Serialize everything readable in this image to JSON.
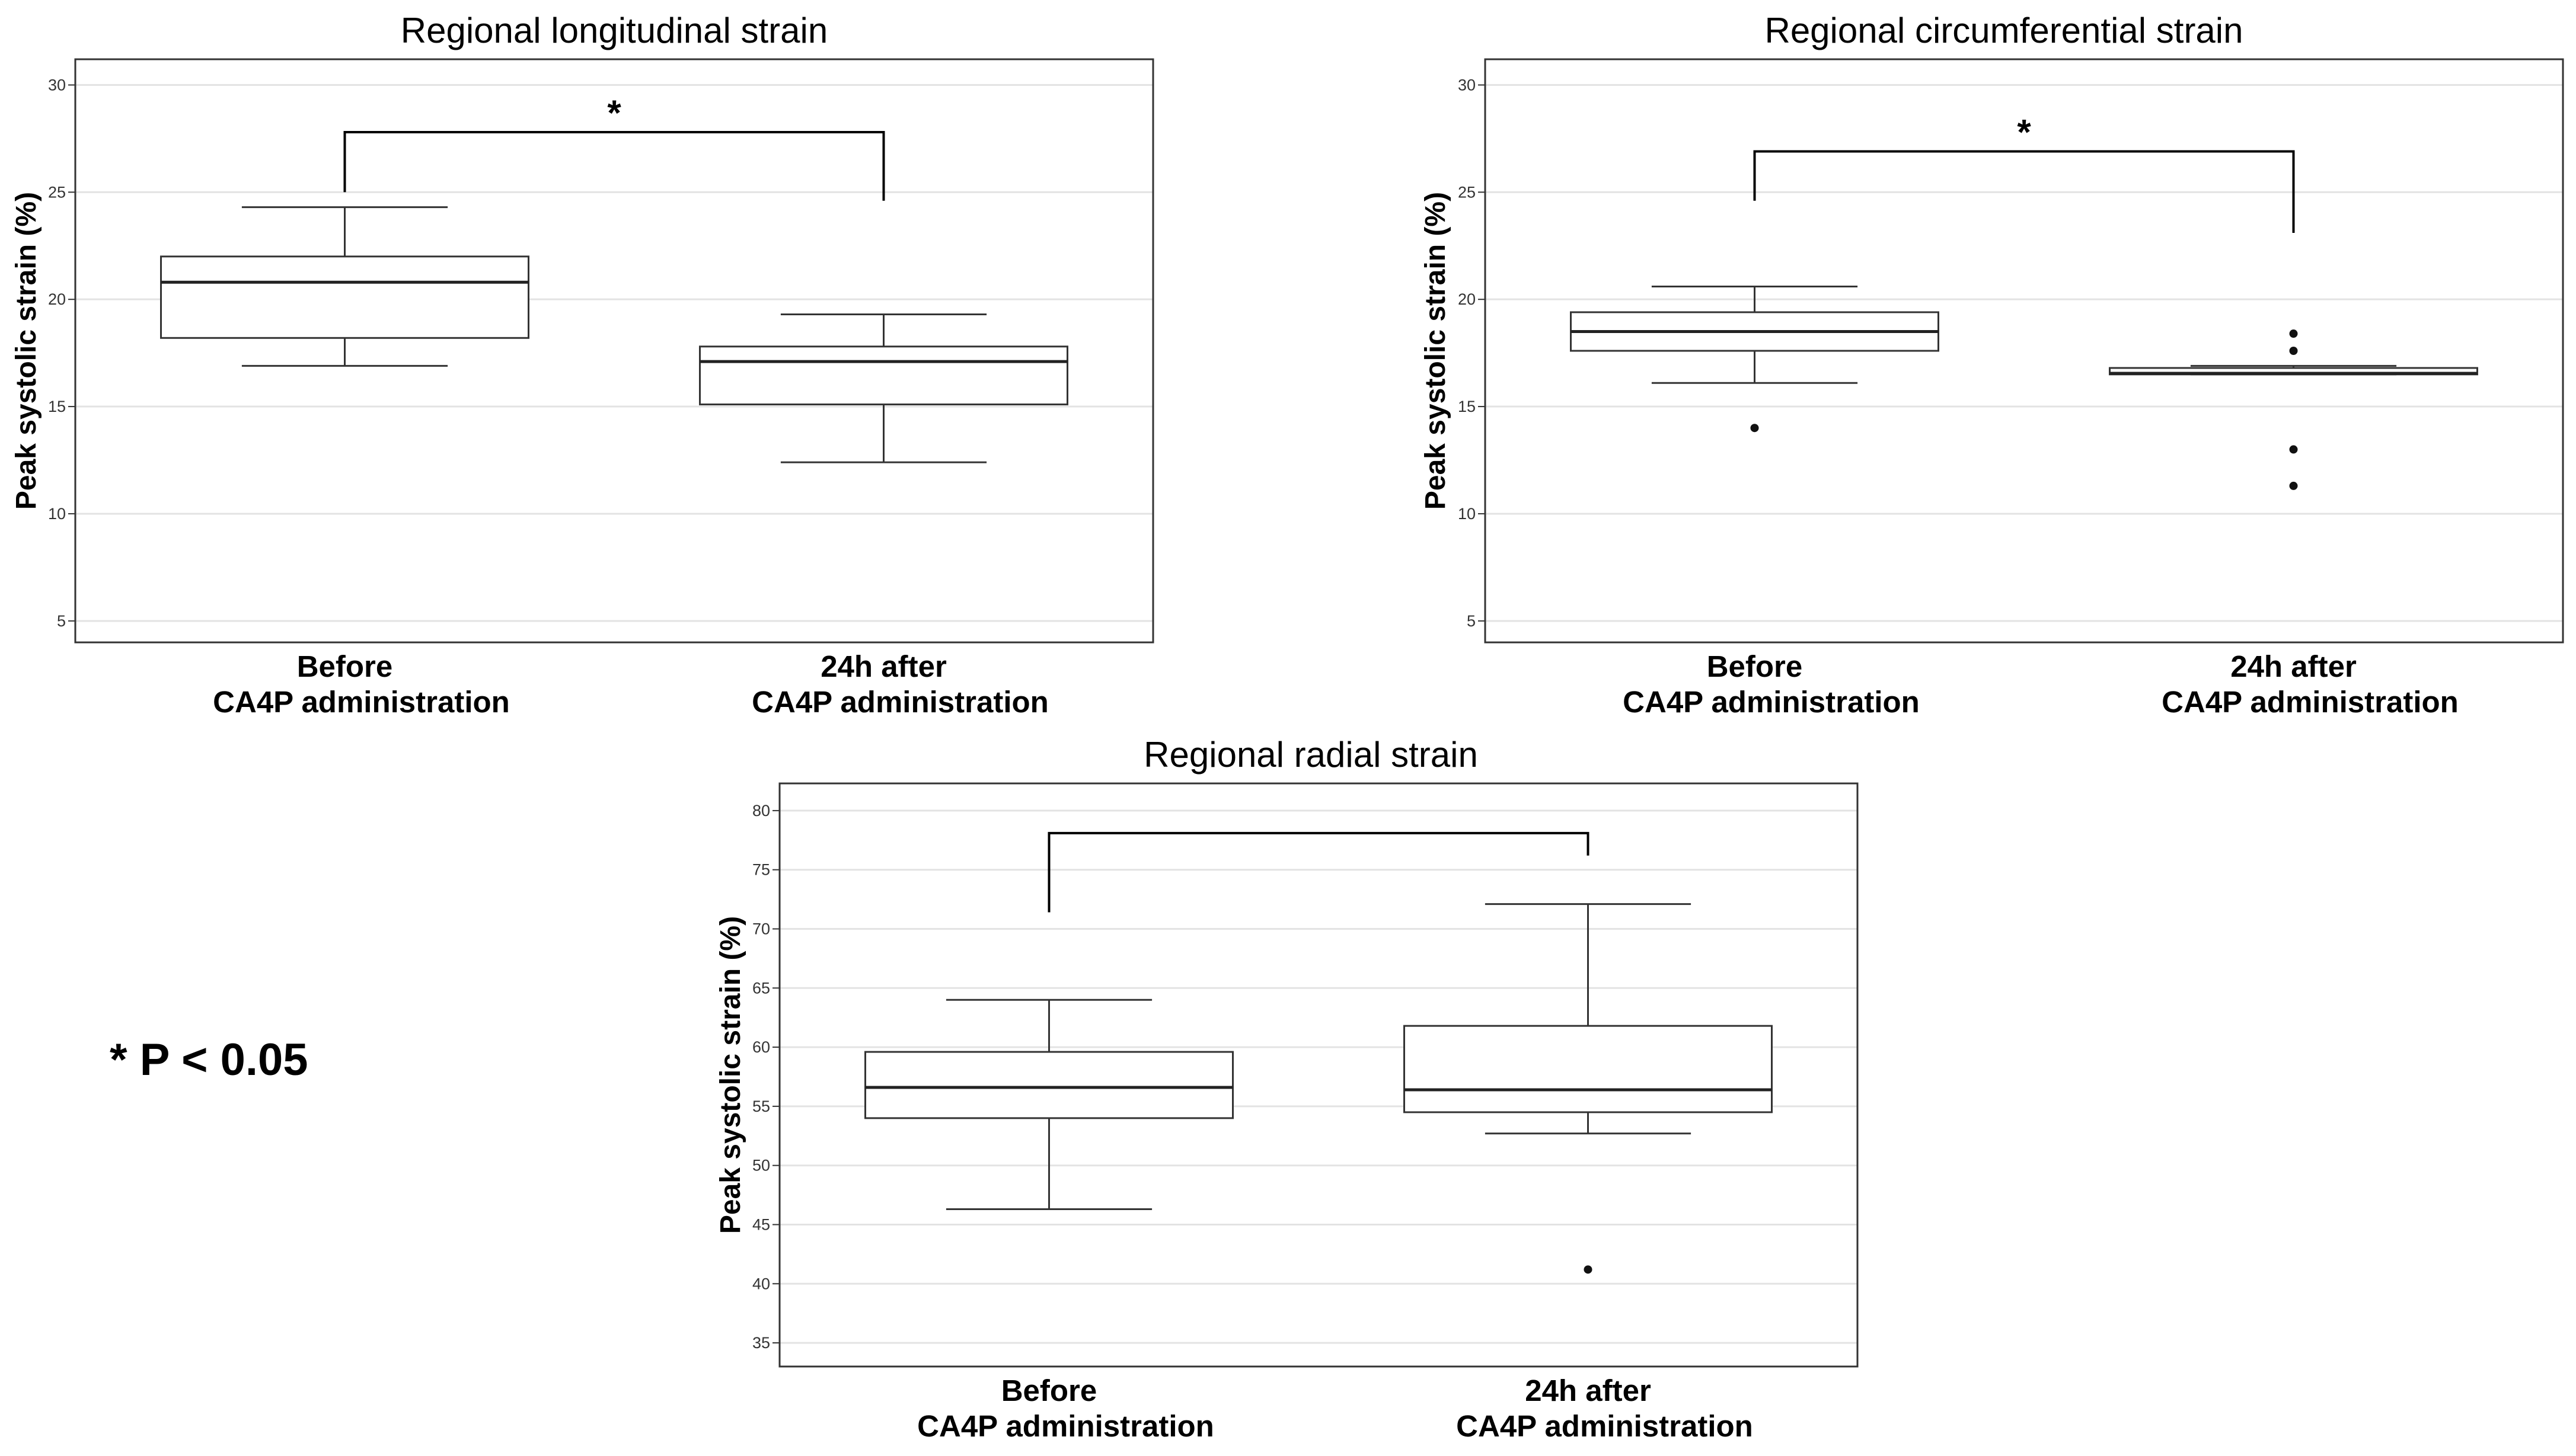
{
  "footnote": "* P < 0.05",
  "chart_data": [
    {
      "type": "box",
      "title": "Regional longitudinal strain",
      "ylabel": "Peak systolic strain (%)",
      "ylim": [
        4,
        31.2
      ],
      "yticks": [
        5,
        10,
        15,
        20,
        25,
        30
      ],
      "grid": true,
      "categories": [
        [
          "Before",
          "CA4P administration"
        ],
        [
          "24h after",
          "CA4P administration"
        ]
      ],
      "boxes": [
        {
          "whisker_low": 16.9,
          "q1": 18.2,
          "median": 20.8,
          "q3": 22.0,
          "whisker_high": 24.3,
          "outliers": []
        },
        {
          "whisker_low": 12.4,
          "q1": 15.1,
          "median": 17.1,
          "q3": 17.8,
          "whisker_high": 19.3,
          "outliers": []
        }
      ],
      "significance": {
        "symbol": "*",
        "bracket_top": 27.8,
        "left_end": 25.0,
        "right_end": 24.6
      }
    },
    {
      "type": "box",
      "title": "Regional circumferential strain",
      "ylabel": "Peak systolic strain (%)",
      "ylim": [
        4,
        31.2
      ],
      "yticks": [
        5,
        10,
        15,
        20,
        25,
        30
      ],
      "grid": true,
      "categories": [
        [
          "Before",
          "CA4P administration"
        ],
        [
          "24h after",
          "CA4P administration"
        ]
      ],
      "boxes": [
        {
          "whisker_low": 16.1,
          "q1": 17.6,
          "median": 18.5,
          "q3": 19.4,
          "whisker_high": 20.6,
          "outliers": [
            14.0
          ]
        },
        {
          "whisker_low": 16.5,
          "q1": 16.5,
          "median": 16.55,
          "q3": 16.8,
          "whisker_high": 16.9,
          "outliers": [
            18.4,
            17.6,
            13.0,
            11.3
          ]
        }
      ],
      "significance": {
        "symbol": "*",
        "bracket_top": 26.9,
        "left_end": 24.6,
        "right_end": 23.1
      }
    },
    {
      "type": "box",
      "title": "Regional radial strain",
      "ylabel": "Peak systolic strain (%)",
      "ylim": [
        33,
        82.3
      ],
      "yticks": [
        35,
        40,
        45,
        50,
        55,
        60,
        65,
        70,
        75,
        80
      ],
      "grid": true,
      "categories": [
        [
          "Before",
          "CA4P administration"
        ],
        [
          "24h after",
          "CA4P administration"
        ]
      ],
      "boxes": [
        {
          "whisker_low": 46.3,
          "q1": 54.0,
          "median": 56.6,
          "q3": 59.6,
          "whisker_high": 64.0,
          "outliers": []
        },
        {
          "whisker_low": 52.7,
          "q1": 54.5,
          "median": 56.4,
          "q3": 61.8,
          "whisker_high": 72.1,
          "outliers": [
            41.2
          ]
        }
      ],
      "significance": {
        "symbol": "",
        "bracket_top": 78.1,
        "left_end": 71.4,
        "right_end": 76.2
      }
    }
  ]
}
